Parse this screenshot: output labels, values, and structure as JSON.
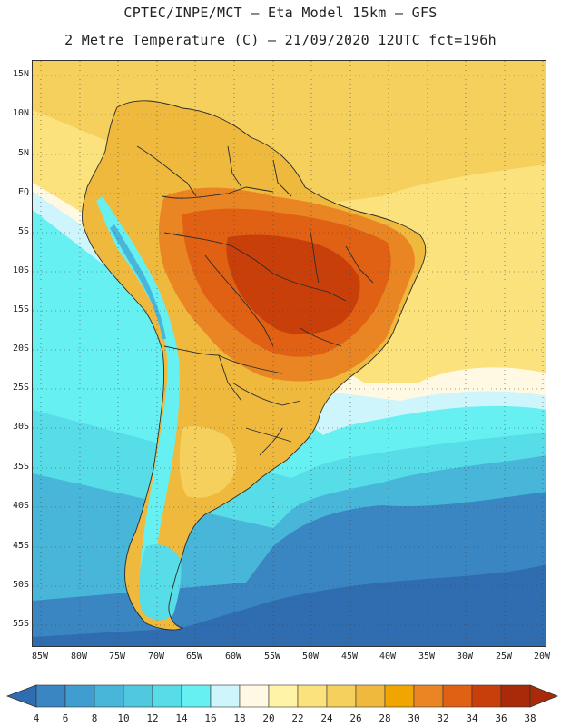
{
  "header": {
    "line1": "CPTEC/INPE/MCT –  Eta Model 15km – GFS",
    "line2": "2 Metre Temperature (C) – 21/09/2020 12UTC fct=196h"
  },
  "axes": {
    "lat_labels": [
      "15N",
      "10N",
      "5N",
      "EQ",
      "5S",
      "10S",
      "15S",
      "20S",
      "25S",
      "30S",
      "35S",
      "40S",
      "45S",
      "50S",
      "55S"
    ],
    "lon_labels": [
      "85W",
      "80W",
      "75W",
      "70W",
      "65W",
      "60W",
      "55W",
      "50W",
      "45W",
      "40W",
      "35W",
      "30W",
      "25W",
      "20W"
    ]
  },
  "legend": {
    "labels": [
      "4",
      "6",
      "8",
      "10",
      "12",
      "14",
      "16",
      "18",
      "20",
      "22",
      "24",
      "26",
      "28",
      "30",
      "32",
      "34",
      "36",
      "38"
    ],
    "colors": [
      "#2f6db0",
      "#3a86c2",
      "#3f9ecf",
      "#48b6d9",
      "#50c9df",
      "#57dde8",
      "#66f0f2",
      "#cdf5fb",
      "#fff9e3",
      "#fff3a6",
      "#fbe27c",
      "#f5d05c",
      "#efb93e",
      "#f0a500",
      "#ea8524",
      "#e06014",
      "#c93f0a",
      "#a82a08"
    ]
  },
  "map_colors": {
    "ocean_deep": "#2f6db0",
    "ocean_mid": "#3a86c2",
    "ocean_cool": "#48b6d9",
    "ocean_cyan": "#57dde8",
    "ocean_bright": "#66f0f2",
    "ocean_pale": "#cdf5fb",
    "ocean_cream": "#fff9e3",
    "ocean_warm": "#fbe27c",
    "ocean_yellow": "#f5d05c",
    "land_warm": "#efb93e",
    "land_hot": "#ea8524",
    "land_hotter": "#e06014",
    "land_hottest": "#c93f0a"
  }
}
